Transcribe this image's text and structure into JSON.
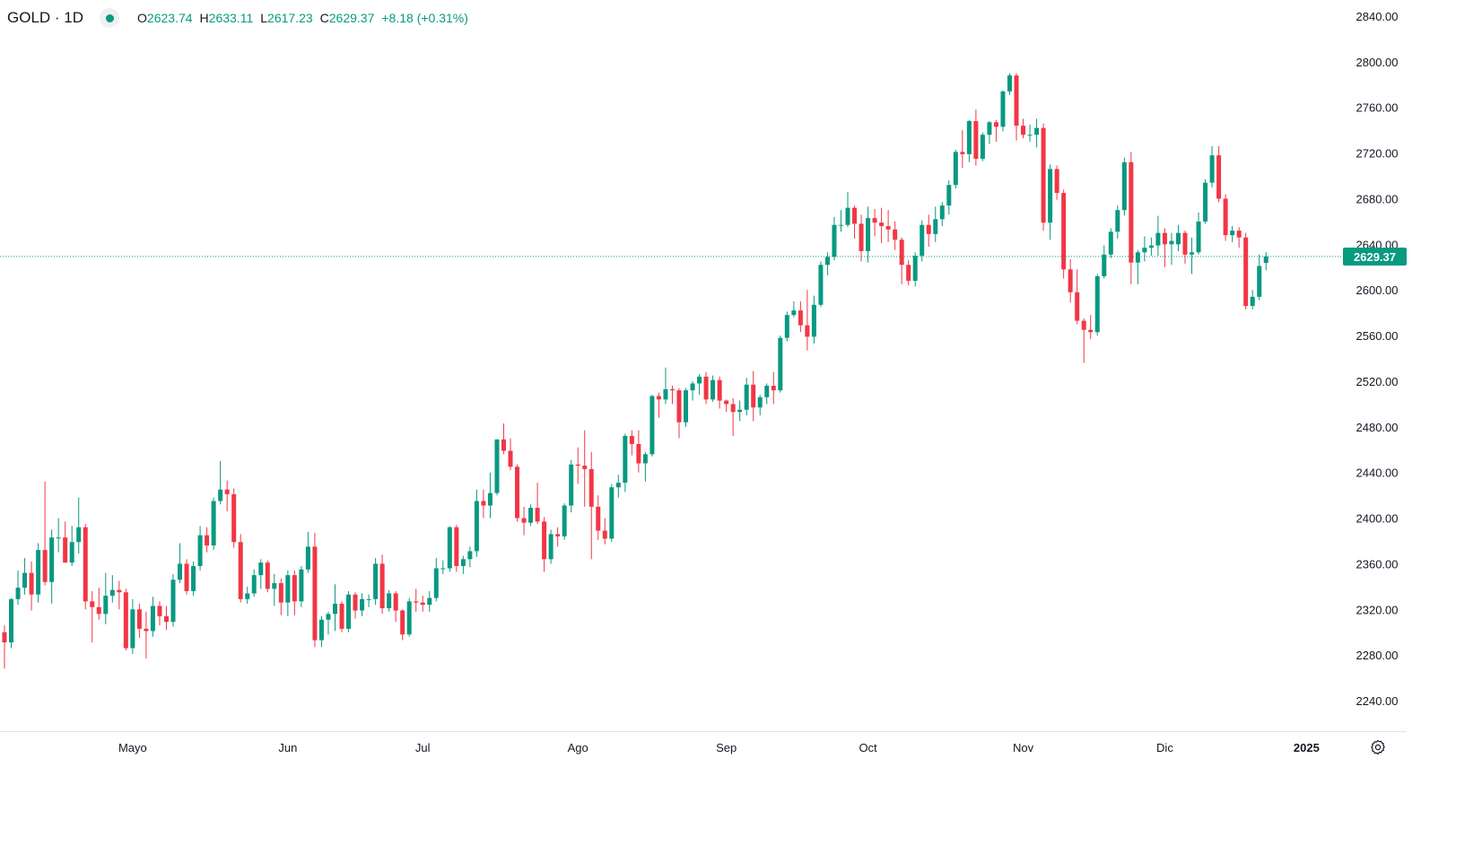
{
  "header": {
    "symbol": "GOLD · 1D",
    "o_label": "O",
    "o": "2623.74",
    "h_label": "H",
    "h": "2633.11",
    "l_label": "L",
    "l": "2617.23",
    "c_label": "C",
    "c": "2629.37",
    "change": "+8.18 (+0.31%)"
  },
  "last_price_tag": "2629.37",
  "colors": {
    "up": "#089981",
    "down": "#F23645",
    "last_price_line": "#089981"
  },
  "icons": {
    "settings": "gear-icon",
    "market_status": "dot-icon"
  },
  "chart_data": {
    "type": "candlestick",
    "title": "GOLD · 1D",
    "ylim": [
      2220,
      2850
    ],
    "y_ticks": [
      "2840.00",
      "2800.00",
      "2760.00",
      "2720.00",
      "2680.00",
      "2640.00",
      "2600.00",
      "2560.00",
      "2520.00",
      "2480.00",
      "2440.00",
      "2400.00",
      "2360.00",
      "2320.00",
      "2280.00",
      "2240.00"
    ],
    "x_ticks": [
      {
        "label": "Mayo",
        "date": "2024-05-01"
      },
      {
        "label": "Jun",
        "date": "2024-06-03"
      },
      {
        "label": "Jul",
        "date": "2024-07-01"
      },
      {
        "label": "Ago",
        "date": "2024-08-01"
      },
      {
        "label": "Sep",
        "date": "2024-09-02"
      },
      {
        "label": "Oct",
        "date": "2024-10-01"
      },
      {
        "label": "Nov",
        "date": "2024-11-01"
      },
      {
        "label": "Dic",
        "date": "2024-12-02"
      },
      {
        "label": "2025",
        "date": "2025-01-02"
      }
    ],
    "last_price": 2629.37,
    "columns": [
      "date",
      "open",
      "high",
      "low",
      "close"
    ],
    "candles": [
      [
        "2024-04-04",
        2300,
        2306,
        2268,
        2291
      ],
      [
        "2024-04-05",
        2291,
        2330,
        2286,
        2329
      ],
      [
        "2024-04-08",
        2329,
        2354,
        2324,
        2339
      ],
      [
        "2024-04-09",
        2339,
        2365,
        2333,
        2352
      ],
      [
        "2024-04-10",
        2352,
        2362,
        2319,
        2333
      ],
      [
        "2024-04-11",
        2333,
        2378,
        2326,
        2372
      ],
      [
        "2024-04-12",
        2372,
        2432,
        2341,
        2344
      ],
      [
        "2024-04-15",
        2344,
        2390,
        2325,
        2383
      ],
      [
        "2024-04-16",
        2383,
        2400,
        2370,
        2383
      ],
      [
        "2024-04-17",
        2383,
        2397,
        2363,
        2361
      ],
      [
        "2024-04-18",
        2361,
        2393,
        2358,
        2379
      ],
      [
        "2024-04-19",
        2379,
        2418,
        2369,
        2392
      ],
      [
        "2024-04-22",
        2392,
        2395,
        2320,
        2327
      ],
      [
        "2024-04-23",
        2327,
        2336,
        2291,
        2322
      ],
      [
        "2024-04-24",
        2322,
        2339,
        2311,
        2316
      ],
      [
        "2024-04-25",
        2316,
        2352,
        2307,
        2332
      ],
      [
        "2024-04-26",
        2332,
        2350,
        2326,
        2337
      ],
      [
        "2024-04-29",
        2337,
        2345,
        2320,
        2335
      ],
      [
        "2024-04-30",
        2335,
        2338,
        2284,
        2286
      ],
      [
        "2024-05-01",
        2286,
        2329,
        2281,
        2320
      ],
      [
        "2024-05-02",
        2320,
        2325,
        2295,
        2303
      ],
      [
        "2024-05-03",
        2303,
        2318,
        2277,
        2301
      ],
      [
        "2024-05-06",
        2301,
        2331,
        2296,
        2323
      ],
      [
        "2024-05-07",
        2323,
        2327,
        2306,
        2314
      ],
      [
        "2024-05-08",
        2314,
        2323,
        2302,
        2309
      ],
      [
        "2024-05-09",
        2309,
        2351,
        2305,
        2346
      ],
      [
        "2024-05-10",
        2346,
        2378,
        2343,
        2360
      ],
      [
        "2024-05-13",
        2360,
        2364,
        2333,
        2336
      ],
      [
        "2024-05-14",
        2336,
        2362,
        2332,
        2358
      ],
      [
        "2024-05-15",
        2358,
        2393,
        2354,
        2385
      ],
      [
        "2024-05-16",
        2385,
        2392,
        2370,
        2376
      ],
      [
        "2024-05-17",
        2376,
        2418,
        2372,
        2415
      ],
      [
        "2024-05-20",
        2415,
        2450,
        2412,
        2425
      ],
      [
        "2024-05-21",
        2425,
        2433,
        2406,
        2421
      ],
      [
        "2024-05-22",
        2421,
        2426,
        2374,
        2379
      ],
      [
        "2024-05-23",
        2379,
        2386,
        2326,
        2329
      ],
      [
        "2024-05-24",
        2329,
        2340,
        2325,
        2334
      ],
      [
        "2024-05-27",
        2334,
        2355,
        2331,
        2350
      ],
      [
        "2024-05-28",
        2350,
        2364,
        2338,
        2361
      ],
      [
        "2024-05-29",
        2361,
        2363,
        2335,
        2338
      ],
      [
        "2024-05-30",
        2338,
        2351,
        2323,
        2343
      ],
      [
        "2024-05-31",
        2343,
        2347,
        2315,
        2326
      ],
      [
        "2024-06-03",
        2326,
        2354,
        2314,
        2350
      ],
      [
        "2024-06-04",
        2350,
        2354,
        2315,
        2327
      ],
      [
        "2024-06-05",
        2327,
        2358,
        2322,
        2355
      ],
      [
        "2024-06-06",
        2355,
        2388,
        2352,
        2375
      ],
      [
        "2024-06-07",
        2375,
        2387,
        2287,
        2293
      ],
      [
        "2024-06-10",
        2293,
        2314,
        2287,
        2311
      ],
      [
        "2024-06-11",
        2311,
        2318,
        2298,
        2316
      ],
      [
        "2024-06-12",
        2316,
        2342,
        2301,
        2325
      ],
      [
        "2024-06-13",
        2325,
        2327,
        2300,
        2303
      ],
      [
        "2024-06-14",
        2303,
        2336,
        2300,
        2333
      ],
      [
        "2024-06-17",
        2333,
        2335,
        2312,
        2319
      ],
      [
        "2024-06-18",
        2319,
        2334,
        2314,
        2329
      ],
      [
        "2024-06-19",
        2329,
        2333,
        2322,
        2329
      ],
      [
        "2024-06-20",
        2329,
        2365,
        2324,
        2360
      ],
      [
        "2024-06-21",
        2360,
        2368,
        2316,
        2321
      ],
      [
        "2024-06-24",
        2321,
        2337,
        2318,
        2334
      ],
      [
        "2024-06-25",
        2334,
        2336,
        2309,
        2319
      ],
      [
        "2024-06-26",
        2319,
        2320,
        2293,
        2298
      ],
      [
        "2024-06-27",
        2298,
        2330,
        2296,
        2327
      ],
      [
        "2024-06-28",
        2327,
        2338,
        2318,
        2326
      ],
      [
        "2024-07-01",
        2326,
        2332,
        2318,
        2324
      ],
      [
        "2024-07-02",
        2324,
        2336,
        2318,
        2330
      ],
      [
        "2024-07-03",
        2330,
        2365,
        2327,
        2356
      ],
      [
        "2024-07-04",
        2356,
        2363,
        2351,
        2356
      ],
      [
        "2024-07-05",
        2356,
        2393,
        2353,
        2392
      ],
      [
        "2024-07-08",
        2392,
        2394,
        2353,
        2358
      ],
      [
        "2024-07-09",
        2358,
        2367,
        2351,
        2364
      ],
      [
        "2024-07-10",
        2364,
        2375,
        2357,
        2371
      ],
      [
        "2024-07-11",
        2371,
        2425,
        2366,
        2415
      ],
      [
        "2024-07-12",
        2415,
        2425,
        2400,
        2411
      ],
      [
        "2024-07-15",
        2411,
        2440,
        2400,
        2422
      ],
      [
        "2024-07-16",
        2422,
        2469,
        2420,
        2469
      ],
      [
        "2024-07-17",
        2469,
        2483,
        2456,
        2459
      ],
      [
        "2024-07-18",
        2459,
        2470,
        2442,
        2445
      ],
      [
        "2024-07-19",
        2445,
        2447,
        2397,
        2400
      ],
      [
        "2024-07-22",
        2400,
        2410,
        2385,
        2396
      ],
      [
        "2024-07-23",
        2396,
        2412,
        2393,
        2409
      ],
      [
        "2024-07-24",
        2409,
        2431,
        2395,
        2397
      ],
      [
        "2024-07-25",
        2397,
        2401,
        2353,
        2364
      ],
      [
        "2024-07-26",
        2364,
        2390,
        2360,
        2386
      ],
      [
        "2024-07-29",
        2386,
        2392,
        2375,
        2384
      ],
      [
        "2024-07-30",
        2384,
        2413,
        2381,
        2411
      ],
      [
        "2024-07-31",
        2411,
        2451,
        2405,
        2447
      ],
      [
        "2024-08-01",
        2447,
        2462,
        2430,
        2446
      ],
      [
        "2024-08-02",
        2446,
        2477,
        2410,
        2443
      ],
      [
        "2024-08-05",
        2443,
        2458,
        2364,
        2410
      ],
      [
        "2024-08-06",
        2410,
        2420,
        2381,
        2389
      ],
      [
        "2024-08-07",
        2389,
        2400,
        2377,
        2382
      ],
      [
        "2024-08-08",
        2382,
        2430,
        2379,
        2427
      ],
      [
        "2024-08-09",
        2427,
        2438,
        2418,
        2431
      ],
      [
        "2024-08-12",
        2431,
        2474,
        2423,
        2472
      ],
      [
        "2024-08-13",
        2472,
        2477,
        2455,
        2465
      ],
      [
        "2024-08-14",
        2465,
        2477,
        2440,
        2448
      ],
      [
        "2024-08-15",
        2448,
        2458,
        2432,
        2456
      ],
      [
        "2024-08-16",
        2456,
        2508,
        2454,
        2507
      ],
      [
        "2024-08-19",
        2507,
        2510,
        2488,
        2504
      ],
      [
        "2024-08-20",
        2504,
        2532,
        2500,
        2513
      ],
      [
        "2024-08-21",
        2513,
        2516,
        2500,
        2512
      ],
      [
        "2024-08-22",
        2512,
        2514,
        2470,
        2484
      ],
      [
        "2024-08-23",
        2484,
        2514,
        2480,
        2512
      ],
      [
        "2024-08-26",
        2512,
        2520,
        2503,
        2518
      ],
      [
        "2024-08-27",
        2518,
        2526,
        2508,
        2524
      ],
      [
        "2024-08-28",
        2524,
        2528,
        2500,
        2504
      ],
      [
        "2024-08-29",
        2504,
        2525,
        2502,
        2521
      ],
      [
        "2024-08-30",
        2521,
        2524,
        2496,
        2503
      ],
      [
        "2024-09-02",
        2503,
        2504,
        2493,
        2500
      ],
      [
        "2024-09-03",
        2500,
        2505,
        2472,
        2493
      ],
      [
        "2024-09-04",
        2493,
        2503,
        2485,
        2495
      ],
      [
        "2024-09-05",
        2495,
        2523,
        2490,
        2517
      ],
      [
        "2024-09-06",
        2517,
        2529,
        2485,
        2497
      ],
      [
        "2024-09-09",
        2497,
        2508,
        2490,
        2506
      ],
      [
        "2024-09-10",
        2506,
        2518,
        2500,
        2516
      ],
      [
        "2024-09-11",
        2516,
        2528,
        2500,
        2512
      ],
      [
        "2024-09-12",
        2512,
        2560,
        2510,
        2558
      ],
      [
        "2024-09-13",
        2558,
        2581,
        2555,
        2578
      ],
      [
        "2024-09-16",
        2578,
        2590,
        2576,
        2582
      ],
      [
        "2024-09-17",
        2582,
        2590,
        2563,
        2569
      ],
      [
        "2024-09-18",
        2569,
        2600,
        2547,
        2559
      ],
      [
        "2024-09-19",
        2559,
        2595,
        2553,
        2587
      ],
      [
        "2024-09-20",
        2587,
        2625,
        2585,
        2622
      ],
      [
        "2024-09-23",
        2622,
        2633,
        2613,
        2629
      ],
      [
        "2024-09-24",
        2629,
        2664,
        2626,
        2657
      ],
      [
        "2024-09-25",
        2657,
        2670,
        2651,
        2657
      ],
      [
        "2024-09-26",
        2657,
        2686,
        2655,
        2672
      ],
      [
        "2024-09-27",
        2672,
        2674,
        2645,
        2658
      ],
      [
        "2024-09-30",
        2658,
        2666,
        2625,
        2634
      ],
      [
        "2024-10-01",
        2634,
        2673,
        2624,
        2663
      ],
      [
        "2024-10-02",
        2663,
        2671,
        2647,
        2659
      ],
      [
        "2024-10-03",
        2659,
        2672,
        2641,
        2656
      ],
      [
        "2024-10-04",
        2656,
        2670,
        2642,
        2653
      ],
      [
        "2024-10-07",
        2653,
        2660,
        2635,
        2644
      ],
      [
        "2024-10-08",
        2644,
        2646,
        2605,
        2622
      ],
      [
        "2024-10-09",
        2622,
        2626,
        2604,
        2608
      ],
      [
        "2024-10-10",
        2608,
        2633,
        2603,
        2630
      ],
      [
        "2024-10-11",
        2630,
        2661,
        2625,
        2657
      ],
      [
        "2024-10-14",
        2657,
        2666,
        2638,
        2649
      ],
      [
        "2024-10-15",
        2649,
        2673,
        2642,
        2662
      ],
      [
        "2024-10-16",
        2662,
        2677,
        2656,
        2674
      ],
      [
        "2024-10-17",
        2674,
        2696,
        2666,
        2692
      ],
      [
        "2024-10-18",
        2692,
        2723,
        2689,
        2721
      ],
      [
        "2024-10-21",
        2721,
        2740,
        2707,
        2719
      ],
      [
        "2024-10-22",
        2719,
        2749,
        2712,
        2748
      ],
      [
        "2024-10-23",
        2748,
        2758,
        2709,
        2715
      ],
      [
        "2024-10-24",
        2715,
        2738,
        2713,
        2736
      ],
      [
        "2024-10-25",
        2736,
        2748,
        2728,
        2747
      ],
      [
        "2024-10-28",
        2747,
        2749,
        2730,
        2743
      ],
      [
        "2024-10-29",
        2743,
        2775,
        2739,
        2774
      ],
      [
        "2024-10-30",
        2774,
        2790,
        2771,
        2788
      ],
      [
        "2024-10-31",
        2788,
        2790,
        2731,
        2744
      ],
      [
        "2024-11-01",
        2744,
        2750,
        2733,
        2736
      ],
      [
        "2024-11-04",
        2736,
        2745,
        2730,
        2736
      ],
      [
        "2024-11-05",
        2736,
        2750,
        2725,
        2742
      ],
      [
        "2024-11-06",
        2742,
        2746,
        2652,
        2659
      ],
      [
        "2024-11-07",
        2659,
        2710,
        2644,
        2706
      ],
      [
        "2024-11-08",
        2706,
        2709,
        2679,
        2685
      ],
      [
        "2024-11-11",
        2685,
        2688,
        2610,
        2618
      ],
      [
        "2024-11-12",
        2618,
        2627,
        2589,
        2598
      ],
      [
        "2024-11-13",
        2598,
        2618,
        2570,
        2573
      ],
      [
        "2024-11-14",
        2573,
        2575,
        2536,
        2565
      ],
      [
        "2024-11-15",
        2565,
        2578,
        2557,
        2563
      ],
      [
        "2024-11-18",
        2563,
        2614,
        2560,
        2612
      ],
      [
        "2024-11-19",
        2612,
        2639,
        2610,
        2631
      ],
      [
        "2024-11-20",
        2631,
        2654,
        2628,
        2651
      ],
      [
        "2024-11-21",
        2651,
        2674,
        2645,
        2670
      ],
      [
        "2024-11-22",
        2670,
        2716,
        2665,
        2712
      ],
      [
        "2024-11-25",
        2712,
        2721,
        2605,
        2624
      ],
      [
        "2024-11-26",
        2624,
        2635,
        2605,
        2633
      ],
      [
        "2024-11-27",
        2633,
        2647,
        2625,
        2637
      ],
      [
        "2024-11-28",
        2637,
        2646,
        2630,
        2639
      ],
      [
        "2024-11-29",
        2639,
        2665,
        2630,
        2650
      ],
      [
        "2024-12-02",
        2650,
        2654,
        2620,
        2640
      ],
      [
        "2024-12-03",
        2640,
        2650,
        2622,
        2643
      ],
      [
        "2024-12-04",
        2640,
        2657,
        2634,
        2650
      ],
      [
        "2024-12-05",
        2650,
        2652,
        2623,
        2631
      ],
      [
        "2024-12-06",
        2631,
        2646,
        2614,
        2633
      ],
      [
        "2024-12-09",
        2633,
        2668,
        2631,
        2660
      ],
      [
        "2024-12-10",
        2660,
        2697,
        2658,
        2694
      ],
      [
        "2024-12-11",
        2694,
        2726,
        2690,
        2718
      ],
      [
        "2024-12-12",
        2718,
        2726,
        2677,
        2680
      ],
      [
        "2024-12-13",
        2680,
        2684,
        2643,
        2648
      ],
      [
        "2024-12-16",
        2648,
        2656,
        2642,
        2652
      ],
      [
        "2024-12-17",
        2652,
        2655,
        2637,
        2646
      ],
      [
        "2024-12-18",
        2646,
        2650,
        2583,
        2586
      ],
      [
        "2024-12-19",
        2586,
        2600,
        2583,
        2594
      ],
      [
        "2024-12-20",
        2594,
        2631,
        2591,
        2621
      ],
      [
        "2024-12-23",
        2623.74,
        2633.11,
        2617.23,
        2629.37
      ]
    ]
  }
}
